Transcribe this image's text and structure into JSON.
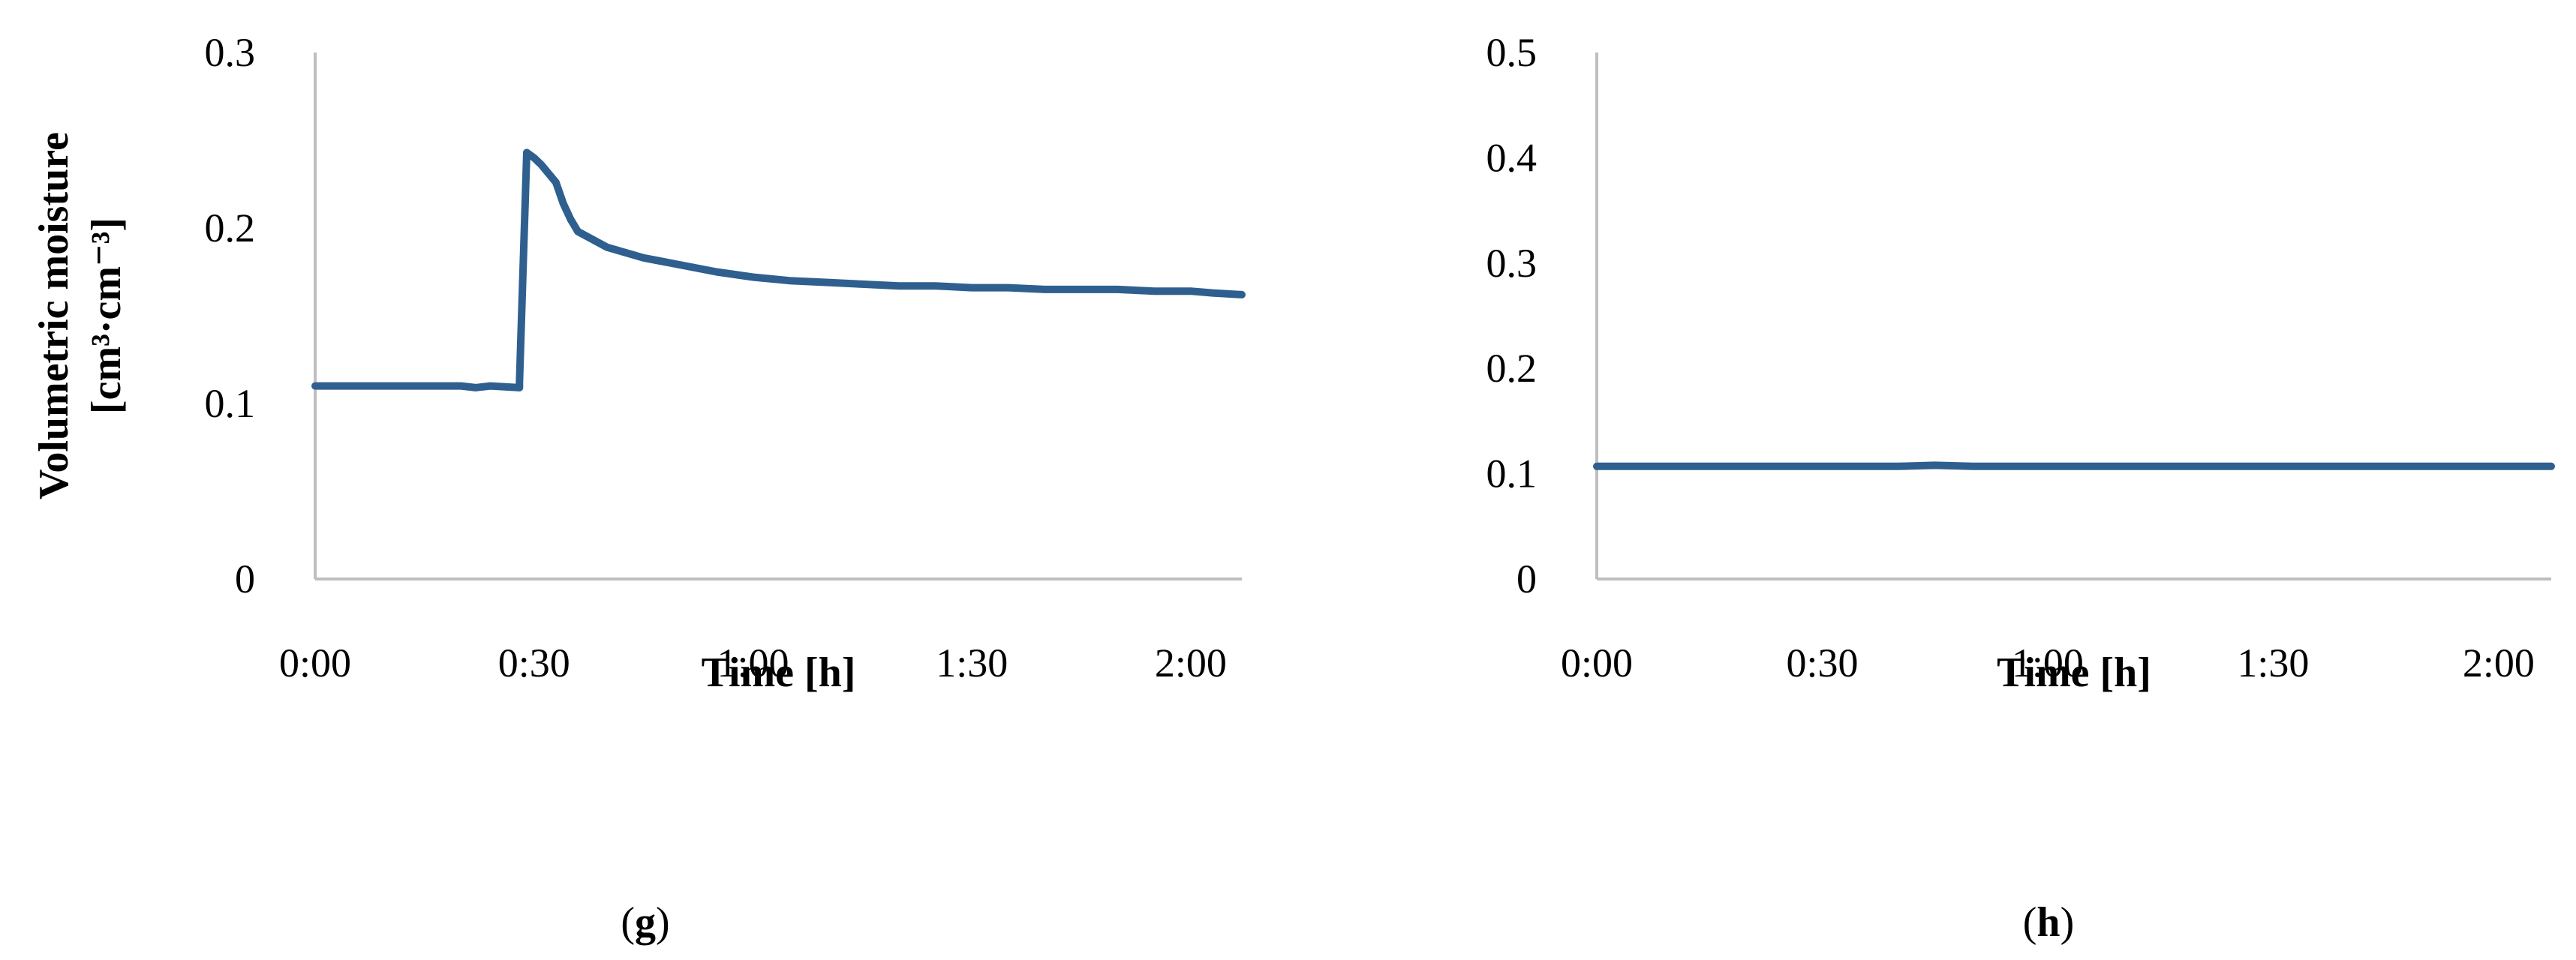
{
  "figure": {
    "panels": [
      {
        "label_open": "(",
        "label_letter": "g",
        "label_close": ")"
      },
      {
        "label_open": "(",
        "label_letter": "h",
        "label_close": ")"
      }
    ]
  },
  "chart_data": [
    {
      "type": "line",
      "panel": "g",
      "xlabel": "Time [h]",
      "ylabel": "Volumetric moisture",
      "ylabel_unit": "[cm³·cm⁻³]",
      "xlim": [
        "0:00",
        "2:07"
      ],
      "ylim": [
        0,
        0.3
      ],
      "x_ticks": [
        "0:00",
        "0:30",
        "1:00",
        "1:30",
        "2:00"
      ],
      "y_ticks": [
        "0",
        "0.1",
        "0.2",
        "0.3"
      ],
      "grid": false,
      "color": "#2e5f8f",
      "series": [
        {
          "x": [
            "0:00",
            "0:10",
            "0:20",
            "0:22",
            "0:24",
            "0:28",
            "0:28",
            "0:29",
            "0:30",
            "0:31",
            "0:33",
            "0:34",
            "0:35",
            "0:36",
            "0:40",
            "0:45",
            "0:50",
            "0:55",
            "1:00",
            "1:05",
            "1:10",
            "1:15",
            "1:20",
            "1:25",
            "1:30",
            "1:35",
            "1:40",
            "1:45",
            "1:50",
            "1:55",
            "2:00",
            "2:03",
            "2:07"
          ],
          "y": [
            0.11,
            0.11,
            0.11,
            0.109,
            0.11,
            0.109,
            0.112,
            0.243,
            0.24,
            0.236,
            0.226,
            0.214,
            0.205,
            0.198,
            0.189,
            0.183,
            0.179,
            0.175,
            0.172,
            0.17,
            0.169,
            0.168,
            0.167,
            0.167,
            0.166,
            0.166,
            0.165,
            0.165,
            0.165,
            0.164,
            0.164,
            0.163,
            0.162
          ]
        }
      ]
    },
    {
      "type": "line",
      "panel": "h",
      "xlabel": "Time [h]",
      "ylabel": "",
      "xlim": [
        "0:00",
        "2:07"
      ],
      "ylim": [
        0,
        0.5
      ],
      "x_ticks": [
        "0:00",
        "0:30",
        "1:00",
        "1:30",
        "2:00"
      ],
      "y_ticks": [
        "0",
        "0.1",
        "0.2",
        "0.3",
        "0.4",
        "0.5"
      ],
      "grid": false,
      "color": "#2e5f8f",
      "series": [
        {
          "x": [
            "0:00",
            "0:20",
            "0:40",
            "0:45",
            "0:50",
            "1:00",
            "1:20",
            "1:40",
            "2:00",
            "2:07"
          ],
          "y": [
            0.107,
            0.107,
            0.107,
            0.108,
            0.107,
            0.107,
            0.107,
            0.107,
            0.107,
            0.107
          ]
        }
      ]
    }
  ]
}
